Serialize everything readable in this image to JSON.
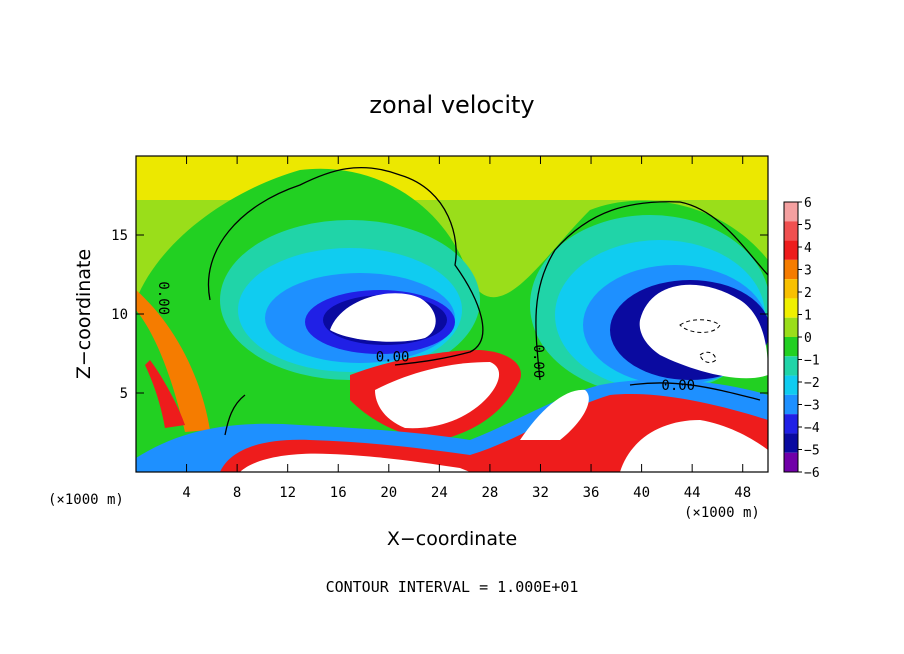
{
  "chart_data": {
    "type": "heatmap",
    "title": "zonal velocity",
    "xlabel": "X−coordinate",
    "ylabel": "Z−coordinate",
    "x_unit_left": "(×1000 m)",
    "x_unit_right": "(×1000 m)",
    "xlim": [
      0,
      50
    ],
    "ylim": [
      0,
      20
    ],
    "x_ticks": [
      4,
      8,
      12,
      16,
      20,
      24,
      28,
      32,
      36,
      40,
      44,
      48
    ],
    "x_tick_labels": [
      "4",
      "8",
      "12",
      "16",
      "20",
      "24",
      "28",
      "32",
      "36",
      "40",
      "44",
      "48"
    ],
    "y_ticks": [
      5,
      10,
      15
    ],
    "y_tick_labels": [
      "5",
      "10",
      "15"
    ],
    "colorbar": {
      "levels": [
        6,
        5,
        4,
        3,
        2,
        1,
        0,
        -1,
        -2,
        -3,
        -4,
        -5,
        -6
      ],
      "labels": [
        "6",
        "5",
        "4",
        "3",
        "2",
        "1",
        "0",
        "−1",
        "−2",
        "−3",
        "−4",
        "−5",
        "−6"
      ],
      "colors": [
        "#f4a0a0",
        "#f05050",
        "#ee1c1c",
        "#f57c00",
        "#f8c000",
        "#f0f000",
        "#9ade1a",
        "#22d022",
        "#20d4a8",
        "#10ccf0",
        "#1e90ff",
        "#2020e6",
        "#0a0aa0",
        "#7000a8"
      ]
    },
    "contour_labels": [
      {
        "text": "0.00",
        "x": 1.8,
        "y": 11.0
      },
      {
        "text": "0.00",
        "x": 20.3,
        "y": 7.0
      },
      {
        "text": "0.00",
        "x": 31.5,
        "y": 7.0
      },
      {
        "text": "0.00",
        "x": 42.9,
        "y": 5.2
      }
    ],
    "note": "CONTOUR INTERVAL = 1.000E+01"
  }
}
